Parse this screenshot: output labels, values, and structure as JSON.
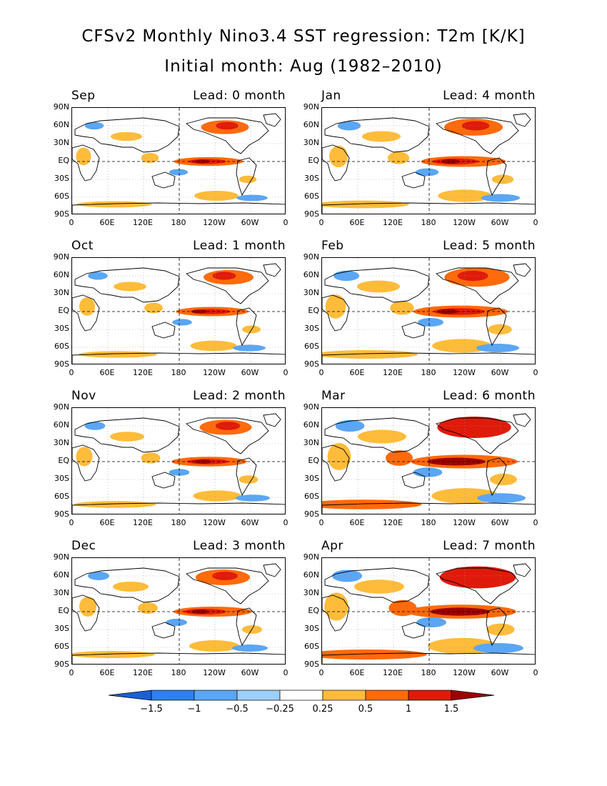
{
  "title_line1": "CFSv2 Monthly Nino3.4 SST regression: T2m [K/K]",
  "title_line2": "Initial month: Aug (1982–2010)",
  "lat_ticks": [
    "90N",
    "60N",
    "30N",
    "EQ",
    "30S",
    "60S",
    "90S"
  ],
  "lon_ticks": [
    "0",
    "60E",
    "120E",
    "180",
    "120W",
    "60W",
    "0"
  ],
  "panels": [
    {
      "month": "Sep",
      "lead": "Lead: 0 month",
      "intensity": 0.35
    },
    {
      "month": "Jan",
      "lead": "Lead: 4 month",
      "intensity": 0.6
    },
    {
      "month": "Oct",
      "lead": "Lead: 1 month",
      "intensity": 0.4
    },
    {
      "month": "Feb",
      "lead": "Lead: 5 month",
      "intensity": 0.75
    },
    {
      "month": "Nov",
      "lead": "Lead: 2 month",
      "intensity": 0.45
    },
    {
      "month": "Mar",
      "lead": "Lead: 6 month",
      "intensity": 0.95
    },
    {
      "month": "Dec",
      "lead": "Lead: 3 month",
      "intensity": 0.5
    },
    {
      "month": "Apr",
      "lead": "Lead: 7 month",
      "intensity": 1.0
    }
  ],
  "colorbar": {
    "labels": [
      "−1.5",
      "−1",
      "−0.5",
      "−0.25",
      "0.25",
      "0.5",
      "1",
      "1.5"
    ],
    "colors": [
      "#1a5fd6",
      "#2f7ff0",
      "#5aa6f5",
      "#9ccff9",
      "#ffffff",
      "#ffbc3a",
      "#ff6a0a",
      "#e01a0a",
      "#a00000"
    ]
  }
}
